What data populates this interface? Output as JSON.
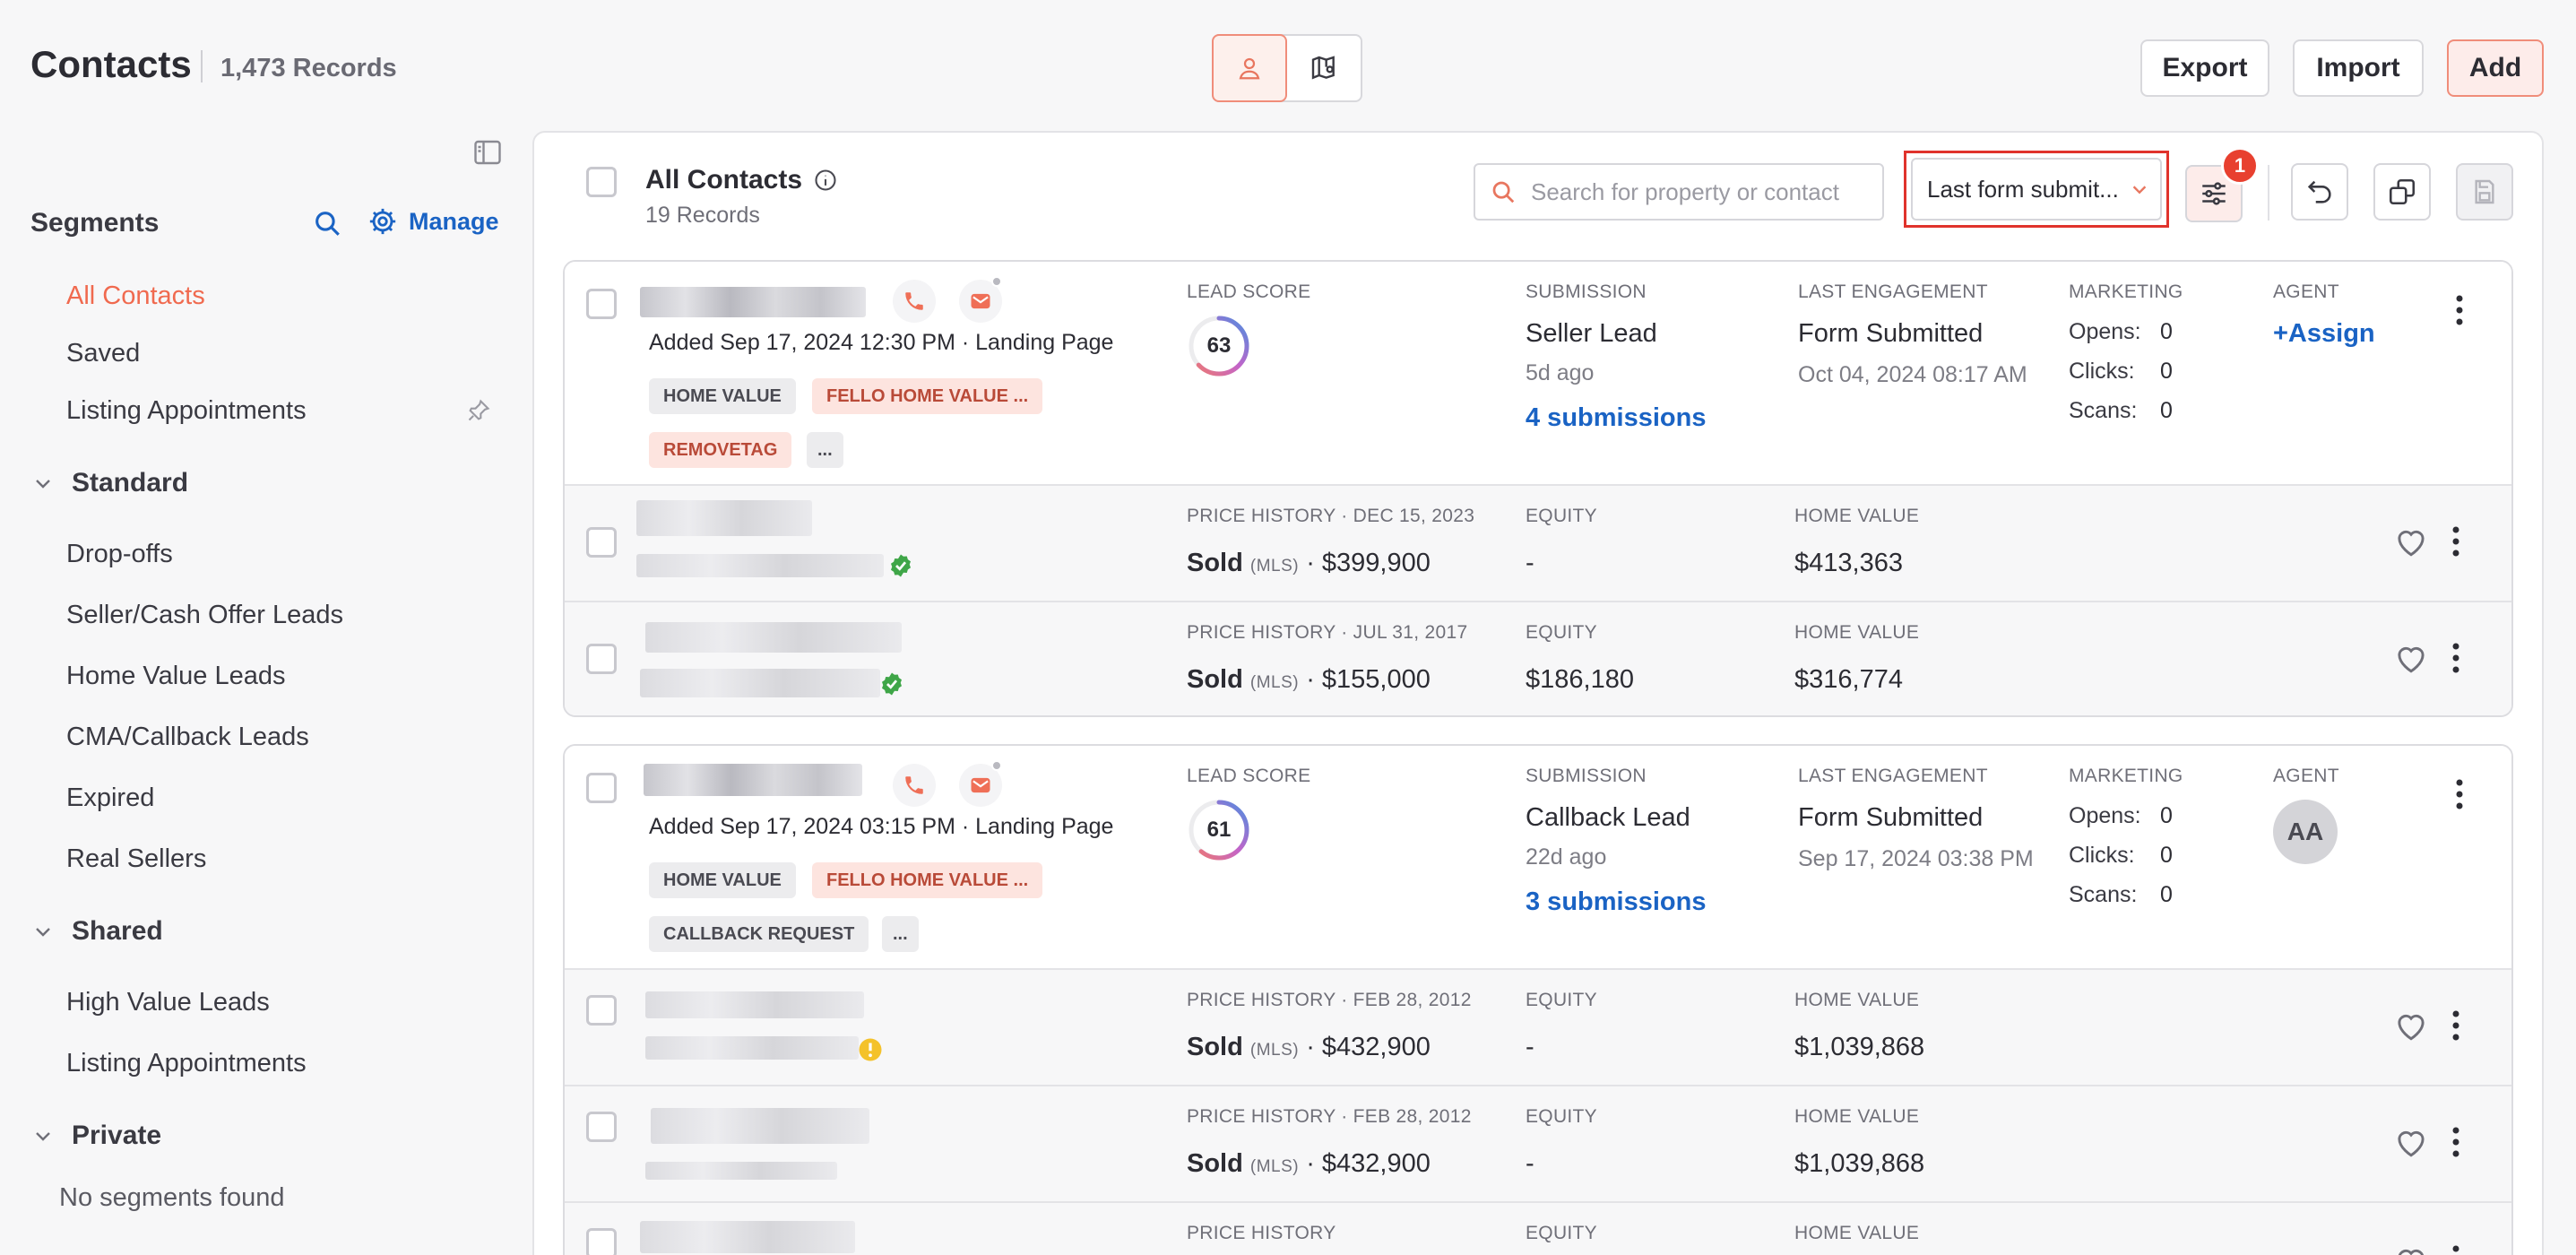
{
  "header": {
    "title": "Contacts",
    "records": "1,473 Records",
    "export_label": "Export",
    "import_label": "Import",
    "add_label": "Add"
  },
  "sidebar": {
    "segments_title": "Segments",
    "manage_label": "Manage",
    "items": [
      "All Contacts",
      "Saved",
      "Listing Appointments"
    ],
    "standard_label": "Standard",
    "standard_items": [
      "Drop-offs",
      "Seller/Cash Offer Leads",
      "Home Value Leads",
      "CMA/Callback Leads",
      "Expired",
      "Real Sellers"
    ],
    "shared_label": "Shared",
    "shared_items": [
      "High Value Leads",
      "Listing Appointments"
    ],
    "private_label": "Private",
    "private_empty": "No segments found"
  },
  "panel": {
    "title": "All Contacts",
    "records": "19 Records",
    "search_placeholder": "Search for property or contact",
    "sort_value": "Last form submit...",
    "filter_count": "1"
  },
  "labels": {
    "lead_score": "LEAD SCORE",
    "submission": "SUBMISSION",
    "last_engagement": "LAST ENGAGEMENT",
    "marketing": "MARKETING",
    "agent": "AGENT",
    "equity": "EQUITY",
    "home_value": "HOME VALUE",
    "opens": "Opens:",
    "clicks": "Clicks:",
    "scans": "Scans:",
    "mls": "(MLS)"
  },
  "contacts": [
    {
      "added": "Added Sep 17, 2024 12:30 PM  ·  Landing Page",
      "tags": [
        "HOME VALUE",
        "FELLO HOME VALUE ...",
        "REMOVETAG",
        "..."
      ],
      "lead_score": "63",
      "lead_score_value": 63,
      "submission_type": "Seller Lead",
      "submission_age": "5d ago",
      "submissions_link": "4 submissions",
      "engagement": "Form Submitted",
      "engagement_date": "Oct 04, 2024 08:17 AM",
      "opens": "0",
      "clicks": "0",
      "scans": "0",
      "agent": "+Assign",
      "properties": [
        {
          "history": "PRICE HISTORY · DEC 15, 2023",
          "sold_label": "Sold",
          "price": "· $399,900",
          "equity": "-",
          "home_value": "$413,363",
          "badge": "verified"
        },
        {
          "history": "PRICE HISTORY · JUL 31, 2017",
          "sold_label": "Sold",
          "price": "· $155,000",
          "equity": "$186,180",
          "home_value": "$316,774",
          "badge": "verified"
        }
      ]
    },
    {
      "added": "Added Sep 17, 2024 03:15 PM  ·  Landing Page",
      "tags": [
        "HOME VALUE",
        "FELLO HOME VALUE ...",
        "CALLBACK REQUEST",
        "..."
      ],
      "lead_score": "61",
      "lead_score_value": 61,
      "submission_type": "Callback Lead",
      "submission_age": "22d ago",
      "submissions_link": "3 submissions",
      "engagement": "Form Submitted",
      "engagement_date": "Sep 17, 2024 03:38 PM",
      "opens": "0",
      "clicks": "0",
      "scans": "0",
      "agent": "AA",
      "properties": [
        {
          "history": "PRICE HISTORY · FEB 28, 2012",
          "sold_label": "Sold",
          "price": "· $432,900",
          "equity": "-",
          "home_value": "$1,039,868",
          "badge": "warning"
        },
        {
          "history": "PRICE HISTORY · FEB 28, 2012",
          "sold_label": "Sold",
          "price": "· $432,900",
          "equity": "-",
          "home_value": "$1,039,868",
          "badge": "none"
        },
        {
          "history": "PRICE HISTORY",
          "equity_label_only": true
        }
      ]
    }
  ]
}
